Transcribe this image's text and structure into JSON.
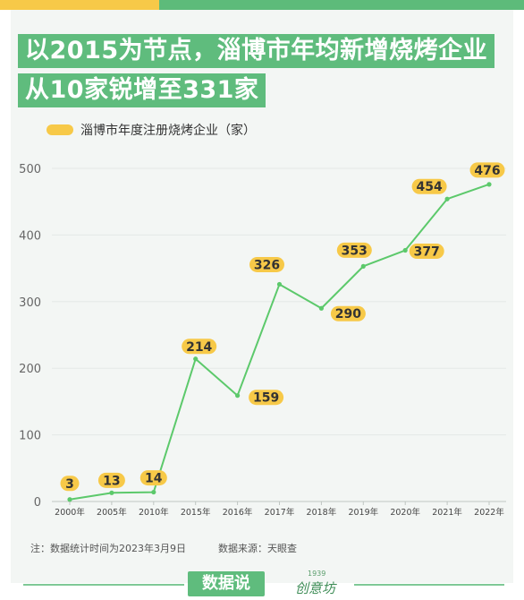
{
  "title_line1": "以2015为节点，淄博市年均新增烧烤企业",
  "title_line2": "从10家锐增至331家",
  "footnote": "注：数据统计时间为2023年3月9日",
  "source": "数据来源：天眼查",
  "brand_label": "数据说",
  "logo_year": "1939",
  "logo_name": "创意坊",
  "colors": {
    "line": "#5cc96b",
    "label_bg": "#f7c948",
    "title_bg": "#5fbc7d",
    "grid": "#e4e8e6"
  },
  "chart_data": {
    "type": "line",
    "categories": [
      "2000年",
      "2005年",
      "2010年",
      "2015年",
      "2016年",
      "2017年",
      "2018年",
      "2019年",
      "2020年",
      "2021年",
      "2022年"
    ],
    "series": [
      {
        "name": "淄博市年度注册烧烤企业（家）",
        "values": [
          3,
          13,
          14,
          214,
          159,
          326,
          290,
          353,
          377,
          454,
          476
        ]
      }
    ],
    "ylim": [
      0,
      500
    ],
    "yticks": [
      0,
      100,
      200,
      300,
      400,
      500
    ],
    "grid": true,
    "legend": "top-left",
    "data_labels": true
  }
}
